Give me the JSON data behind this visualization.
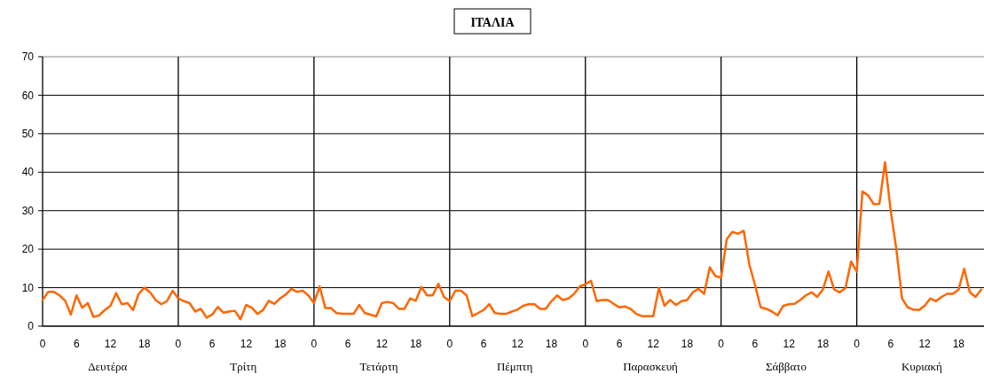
{
  "chart_data": {
    "type": "line",
    "title": "ΙΤΑΛΙΑ",
    "categories": [
      "0",
      null,
      null,
      null,
      null,
      null,
      "6",
      null,
      null,
      null,
      null,
      null,
      "12",
      null,
      null,
      null,
      null,
      null,
      "18",
      null,
      null,
      null,
      null,
      null,
      "0",
      null,
      null,
      null,
      null,
      null,
      "6",
      null,
      null,
      null,
      null,
      null,
      "12",
      null,
      null,
      null,
      null,
      null,
      "18",
      null,
      null,
      null,
      null,
      null,
      "0",
      null,
      null,
      null,
      null,
      null,
      "6",
      null,
      null,
      null,
      null,
      null,
      "12",
      null,
      null,
      null,
      null,
      null,
      "18",
      null,
      null,
      null,
      null,
      null,
      "0",
      null,
      null,
      null,
      null,
      null,
      "6",
      null,
      null,
      null,
      null,
      null,
      "12",
      null,
      null,
      null,
      null,
      null,
      "18",
      null,
      null,
      null,
      null,
      null,
      "0",
      null,
      null,
      null,
      null,
      null,
      "6",
      null,
      null,
      null,
      null,
      null,
      "12",
      null,
      null,
      null,
      null,
      null,
      "18",
      null,
      null,
      null,
      null,
      null,
      "0",
      null,
      null,
      null,
      null,
      null,
      "6",
      null,
      null,
      null,
      null,
      null,
      "12",
      null,
      null,
      null,
      null,
      null,
      "18",
      null,
      null,
      null,
      null,
      null,
      "0",
      null,
      null,
      null,
      null,
      null,
      "6",
      null,
      null,
      null,
      null,
      null,
      "12",
      null,
      null,
      null,
      null,
      null,
      "18",
      null,
      null,
      null,
      null
    ],
    "values": [
      6.8,
      8.9,
      8.9,
      8,
      6.6,
      3,
      8,
      4.8,
      6,
      2.4,
      2.8,
      4.2,
      5.3,
      8.6,
      5.7,
      6,
      4.2,
      8.4,
      10,
      8.8,
      6.8,
      5.7,
      6.5,
      9.2,
      7.2,
      6.5,
      6,
      3.8,
      4.5,
      2.2,
      3,
      5,
      3.5,
      3.8,
      4,
      1.8,
      5.5,
      4.8,
      3.2,
      4.2,
      6.6,
      5.8,
      7.2,
      8.2,
      9.7,
      8.9,
      9.2,
      8,
      6,
      10.3,
      4.7,
      4.7,
      3.4,
      3.2,
      3.2,
      3.2,
      5.5,
      3.4,
      3,
      2.5,
      6,
      6.3,
      6,
      4.5,
      4.5,
      7.2,
      6.6,
      10.2,
      8,
      8,
      11,
      7.6,
      6.5,
      9.2,
      9.2,
      8,
      2.6,
      3.4,
      4.2,
      5.7,
      3.4,
      3.2,
      3.2,
      3.8,
      4.3,
      5.3,
      5.7,
      5.7,
      4.5,
      4.5,
      6.5,
      8,
      6.8,
      7.2,
      8.4,
      10.3,
      10.9,
      11.8,
      6.5,
      6.8,
      6.8,
      5.8,
      4.9,
      5.1,
      4.5,
      3.2,
      2.6,
      2.6,
      2.6,
      9.9,
      5.3,
      6.8,
      5.5,
      6.5,
      6.8,
      8.8,
      9.7,
      8.4,
      15.3,
      13,
      12.6,
      22.6,
      24.5,
      24,
      24.8,
      16,
      10.7,
      4.9,
      4.5,
      3.8,
      2.8,
      5.3,
      5.7,
      5.8,
      6.8,
      8,
      8.8,
      7.6,
      9.5,
      14.2,
      9.5,
      8.8,
      9.9,
      16.8,
      14.2,
      35,
      34,
      31.7,
      31.8,
      42.6,
      30,
      20,
      7.2,
      4.9,
      4.3,
      4.2,
      5.3,
      7.2,
      6.5,
      7.6,
      8.4,
      8.4,
      9.5,
      14.9,
      8.8,
      7.6,
      9.5
    ],
    "color": "#ff6600",
    "ylim": [
      0,
      70
    ],
    "yticks": [
      0,
      10,
      20,
      30,
      40,
      50,
      60,
      70
    ],
    "grid": "y",
    "marker": "none",
    "line_style": "solid",
    "annotations": [
      "Δευτέρα",
      "Τρίτη",
      "Τετάρτη",
      "Πέμπτη",
      "Παρασκευή",
      "Σάββατο",
      "Κυριακή"
    ]
  }
}
